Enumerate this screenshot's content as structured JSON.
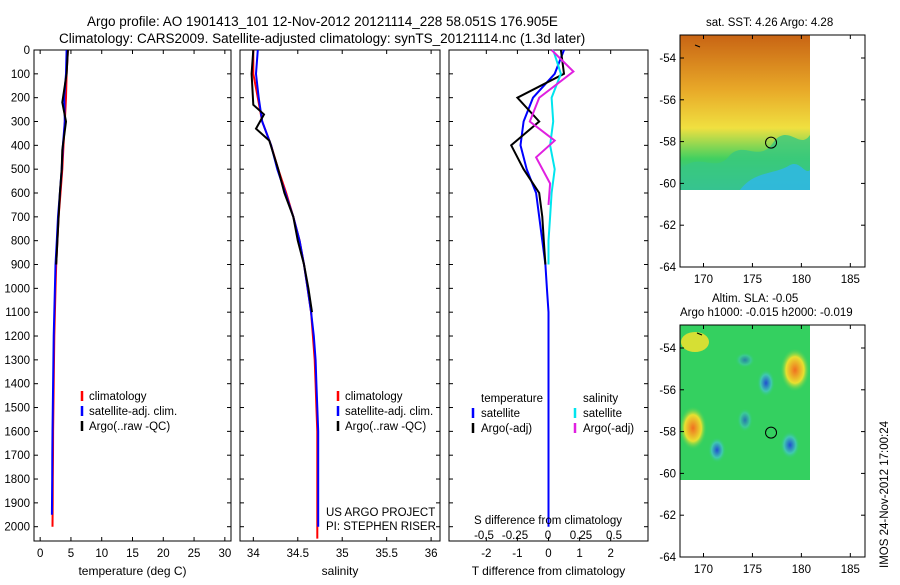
{
  "header": {
    "line1": "Argo profile: AO 1901413_101 12-Nov-2012 20121114_228 58.051S 176.905E",
    "line2": "Climatology: CARS2009. Satellite-adjusted climatology: synTS_20121114.nc (1.3d later)"
  },
  "colors": {
    "climatology": "#ff0000",
    "satellite": "#0000ff",
    "argo": "#000000",
    "satellite_s": "#00e5ee",
    "argo_s": "#e020e0"
  },
  "depth_axis": {
    "ticks": [
      0,
      100,
      200,
      300,
      400,
      500,
      600,
      700,
      800,
      900,
      1000,
      1100,
      1200,
      1300,
      1400,
      1500,
      1600,
      1700,
      1800,
      1900,
      2000
    ],
    "range": [
      0,
      2060
    ]
  },
  "chart_data": [
    {
      "type": "line",
      "panel": "temperature",
      "xlabel": "temperature (deg C)",
      "xlim": [
        -1,
        31
      ],
      "xticks": [
        "0",
        "5",
        "10",
        "15",
        "20",
        "25",
        "30"
      ],
      "legend": [
        "climatology",
        "satellite-adj. clim.",
        "Argo(..raw -QC)"
      ],
      "series": [
        {
          "name": "climatology",
          "color": "#ff0000",
          "x": [
            4.5,
            4.3,
            4.2,
            4.0,
            3.8,
            3.6,
            3.3,
            3.0,
            2.8,
            2.6,
            2.5,
            2.4,
            2.3,
            2.25,
            2.2,
            2.15,
            2.1,
            2.08,
            2.05,
            2.03,
            2.0
          ],
          "y": [
            0,
            100,
            200,
            300,
            400,
            500,
            600,
            700,
            800,
            900,
            1000,
            1100,
            1200,
            1300,
            1400,
            1500,
            1600,
            1700,
            1800,
            1900,
            2000
          ]
        },
        {
          "name": "satellite-adj. clim.",
          "color": "#0000ff",
          "x": [
            4.3,
            4.2,
            3.9,
            4.0,
            3.7,
            3.5,
            3.2,
            2.9,
            2.7,
            2.5,
            2.4,
            2.3,
            2.2,
            2.15,
            2.1,
            2.05,
            2.0,
            1.98,
            1.95,
            1.93,
            1.9
          ],
          "y": [
            0,
            100,
            200,
            300,
            400,
            500,
            600,
            700,
            800,
            900,
            1000,
            1100,
            1200,
            1300,
            1400,
            1500,
            1600,
            1700,
            1800,
            1900,
            1950
          ]
        },
        {
          "name": "Argo(..raw -QC)",
          "color": "#000000",
          "x": [
            4.5,
            4.3,
            3.6,
            4.2,
            3.6,
            3.5,
            3.2,
            3.0,
            2.8,
            2.6
          ],
          "y": [
            0,
            100,
            220,
            300,
            420,
            500,
            600,
            700,
            800,
            900
          ]
        }
      ]
    },
    {
      "type": "line",
      "panel": "salinity",
      "xlabel": "salinity",
      "xlim": [
        33.85,
        36.1
      ],
      "xticks": [
        "34",
        "34.5",
        "35",
        "35.5",
        "36"
      ],
      "legend": [
        "climatology",
        "satellite-adj. clim.",
        "Argo(..raw -QC)"
      ],
      "annotations": [
        "US ARGO PROJECT",
        "PI: STEPHEN RISER"
      ],
      "series": [
        {
          "name": "climatology",
          "color": "#ff0000",
          "x": [
            34.0,
            34.0,
            34.05,
            34.1,
            34.2,
            34.28,
            34.37,
            34.45,
            34.52,
            34.57,
            34.61,
            34.65,
            34.67,
            34.69,
            34.7,
            34.71,
            34.72,
            34.72,
            34.72,
            34.72,
            34.72
          ],
          "y": [
            0,
            100,
            200,
            300,
            400,
            500,
            600,
            700,
            800,
            900,
            1000,
            1100,
            1200,
            1300,
            1400,
            1500,
            1600,
            1700,
            1800,
            1900,
            2050
          ]
        },
        {
          "name": "satellite-adj. clim.",
          "color": "#0000ff",
          "x": [
            34.05,
            34.03,
            34.06,
            34.1,
            34.2,
            34.27,
            34.36,
            34.45,
            34.52,
            34.57,
            34.61,
            34.65,
            34.68,
            34.7,
            34.71,
            34.72,
            34.73,
            34.73,
            34.73,
            34.73,
            34.73
          ],
          "y": [
            0,
            100,
            200,
            300,
            400,
            500,
            600,
            700,
            800,
            900,
            1000,
            1100,
            1200,
            1300,
            1400,
            1500,
            1600,
            1700,
            1800,
            1900,
            2000
          ]
        },
        {
          "name": "Argo(..raw -QC)",
          "color": "#000000",
          "x": [
            34.0,
            33.98,
            34.0,
            34.12,
            34.03,
            34.18,
            34.28,
            34.35,
            34.45,
            34.5,
            34.57,
            34.62,
            34.66
          ],
          "y": [
            0,
            100,
            230,
            270,
            330,
            380,
            500,
            600,
            700,
            800,
            900,
            1000,
            1100
          ]
        }
      ]
    },
    {
      "type": "line",
      "panel": "difference",
      "xlabel_top": "S difference from climatology",
      "xticks_top": [
        "-0.5",
        "-0.25",
        "0",
        "0.25",
        "0.5"
      ],
      "xlabel": "T difference from climatology",
      "xticks": [
        "-2",
        "-1",
        "0",
        "1",
        "2"
      ],
      "xlim": [
        -3.2,
        3.2
      ],
      "legend_titles": [
        "temperature",
        "salinity"
      ],
      "legend": [
        "satellite",
        "Argo(-adj)",
        "satellite",
        "Argo(-adj)"
      ],
      "series": [
        {
          "name": "temperature satellite",
          "color": "#0000ff",
          "x": [
            0.5,
            0.2,
            -0.5,
            -0.8,
            -0.9,
            -0.7,
            -0.4,
            -0.3,
            -0.2,
            -0.1,
            -0.05,
            0,
            0,
            0,
            0,
            0,
            0,
            0,
            0,
            0,
            0
          ],
          "y": [
            0,
            100,
            200,
            300,
            400,
            500,
            600,
            700,
            800,
            900,
            1000,
            1100,
            1200,
            1300,
            1400,
            1500,
            1600,
            1700,
            1800,
            1900,
            2000
          ]
        },
        {
          "name": "temperature Argo(-adj)",
          "color": "#000000",
          "x": [
            0.4,
            0.5,
            -1.0,
            -0.3,
            -1.2,
            -0.8,
            -0.3,
            -0.2,
            -0.15,
            -0.1
          ],
          "y": [
            0,
            100,
            200,
            300,
            400,
            500,
            600,
            700,
            800,
            900
          ]
        },
        {
          "name": "salinity satellite",
          "color": "#00e5ee",
          "x": [
            0.15,
            0.4,
            0.1,
            0.15,
            0.05,
            0.2,
            0.1,
            0.05,
            0,
            0
          ],
          "y": [
            0,
            100,
            200,
            300,
            400,
            500,
            600,
            700,
            800,
            900
          ]
        },
        {
          "name": "salinity Argo(-adj)",
          "color": "#e020e0",
          "x": [
            0.1,
            0.8,
            -0.3,
            -0.6,
            0.2,
            -0.4,
            0.05,
            0.0
          ],
          "y": [
            0,
            90,
            200,
            300,
            380,
            450,
            560,
            650
          ]
        }
      ]
    }
  ],
  "maps": [
    {
      "title": "sat. SST: 4.26 Argo: 4.28",
      "subtitle": "",
      "yticks": [
        "-54",
        "-56",
        "-58",
        "-60",
        "-62",
        "-64"
      ],
      "xticks": [
        "170",
        "175",
        "180",
        "185"
      ],
      "marker_lon": 176.9,
      "marker_lat": -58.05
    },
    {
      "title": "Altim. SLA: -0.05",
      "subtitle": "Argo h1000: -0.015 h2000: -0.019",
      "yticks": [
        "-54",
        "-56",
        "-58",
        "-60",
        "-62",
        "-64"
      ],
      "xticks": [
        "170",
        "175",
        "180",
        "185"
      ],
      "marker_lon": 176.9,
      "marker_lat": -58.05
    }
  ],
  "side_stamp": "IMOS 24-Nov-2012 17:00:24"
}
